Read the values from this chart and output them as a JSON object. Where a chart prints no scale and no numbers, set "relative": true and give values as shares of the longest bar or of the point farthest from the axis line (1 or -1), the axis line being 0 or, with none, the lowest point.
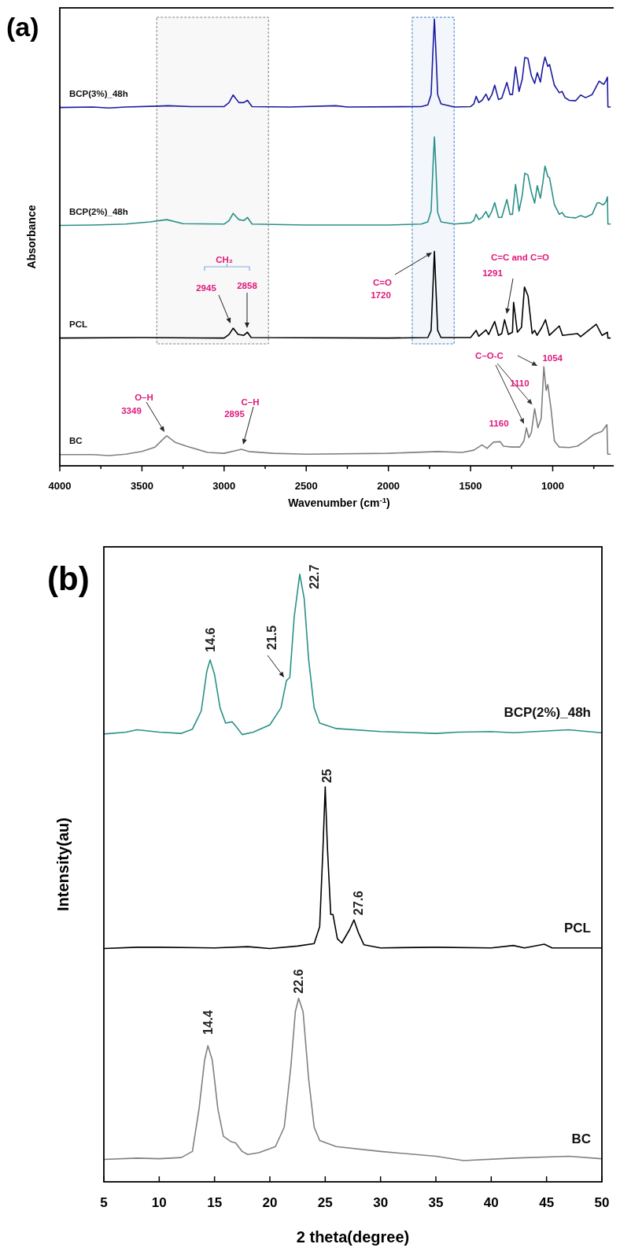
{
  "chart_data": [
    {
      "type": "line",
      "title": "(a)",
      "xlabel": "Wavenumber (cm$^{-1}$)",
      "ylabel": "Absorbance",
      "relative": true,
      "xlim": [
        4000,
        600
      ],
      "xticks": [
        4000,
        {
          "value": 3750,
          "label": null
        },
        3500,
        {
          "value": 3250,
          "label": null
        },
        3000,
        {
          "value": 2750,
          "label": null
        },
        2500,
        {
          "value": 2250,
          "label": null
        },
        2000,
        {
          "value": 1750,
          "label": null
        },
        1500,
        {
          "value": 1250,
          "label": null
        },
        1000,
        {
          "value": 750,
          "label": null
        }
      ],
      "bands": [
        {
          "axis": "x",
          "from": 3410,
          "to": 2730,
          "color": "#808080"
        },
        {
          "axis": "x",
          "from": 1855,
          "to": 1600,
          "color": "#3a7cc4"
        }
      ],
      "series": [
        {
          "name": "BCP(3%)_48h",
          "color": "#1a1aa0",
          "x": [
            4000,
            3800,
            3700,
            3600,
            3400,
            3340,
            3200,
            3000,
            2970,
            2945,
            2910,
            2880,
            2858,
            2830,
            2600,
            2320,
            2250,
            1800,
            1760,
            1740,
            1728,
            1720,
            1712,
            1700,
            1680,
            1600,
            1500,
            1480,
            1466,
            1450,
            1430,
            1406,
            1390,
            1370,
            1353,
            1330,
            1310,
            1279,
            1260,
            1245,
            1226,
            1205,
            1185,
            1170,
            1151,
            1130,
            1110,
            1094,
            1075,
            1060,
            1047,
            1030,
            1019,
            990,
            960,
            943,
            925,
            900,
            860,
            830,
            800,
            760,
            730,
            717,
            700,
            689,
            675,
            667,
            664,
            650
          ],
          "values": [
            0.802,
            0.803,
            0.801,
            0.803,
            0.805,
            0.806,
            0.804,
            0.804,
            0.813,
            0.83,
            0.813,
            0.813,
            0.818,
            0.804,
            0.803,
            0.806,
            0.803,
            0.804,
            0.808,
            0.831,
            0.937,
            1.0,
            0.937,
            0.831,
            0.81,
            0.803,
            0.804,
            0.81,
            0.827,
            0.813,
            0.818,
            0.832,
            0.818,
            0.831,
            0.852,
            0.82,
            0.823,
            0.858,
            0.831,
            0.831,
            0.893,
            0.838,
            0.866,
            0.914,
            0.912,
            0.873,
            0.856,
            0.88,
            0.859,
            0.894,
            0.915,
            0.894,
            0.898,
            0.852,
            0.835,
            0.838,
            0.824,
            0.818,
            0.817,
            0.83,
            0.824,
            0.831,
            0.852,
            0.861,
            0.856,
            0.854,
            0.863,
            0.87,
            0.803,
            0.803
          ]
        },
        {
          "name": "BCP(2%)_48h",
          "color": "#2a9088",
          "x": [
            4000,
            3800,
            3600,
            3450,
            3349,
            3250,
            3000,
            2970,
            2945,
            2910,
            2880,
            2858,
            2830,
            2500,
            2000,
            1800,
            1760,
            1740,
            1728,
            1720,
            1712,
            1700,
            1680,
            1600,
            1500,
            1480,
            1466,
            1450,
            1430,
            1406,
            1390,
            1370,
            1353,
            1330,
            1310,
            1279,
            1260,
            1245,
            1226,
            1205,
            1185,
            1170,
            1151,
            1130,
            1110,
            1094,
            1075,
            1060,
            1047,
            1030,
            1019,
            990,
            960,
            943,
            925,
            900,
            860,
            830,
            800,
            760,
            730,
            717,
            700,
            689,
            675,
            667,
            664,
            650
          ],
          "values": [
            0.538,
            0.539,
            0.541,
            0.546,
            0.551,
            0.542,
            0.541,
            0.549,
            0.565,
            0.551,
            0.549,
            0.556,
            0.541,
            0.539,
            0.539,
            0.541,
            0.546,
            0.57,
            0.676,
            0.736,
            0.676,
            0.567,
            0.546,
            0.541,
            0.544,
            0.549,
            0.563,
            0.551,
            0.556,
            0.569,
            0.556,
            0.57,
            0.589,
            0.556,
            0.556,
            0.596,
            0.563,
            0.563,
            0.63,
            0.57,
            0.606,
            0.655,
            0.651,
            0.613,
            0.588,
            0.627,
            0.599,
            0.634,
            0.671,
            0.648,
            0.644,
            0.585,
            0.563,
            0.567,
            0.558,
            0.556,
            0.555,
            0.56,
            0.556,
            0.563,
            0.588,
            0.589,
            0.585,
            0.585,
            0.592,
            0.602,
            0.541,
            0.541
          ]
        },
        {
          "name": "PCL",
          "color": "#000000",
          "x": [
            4000,
            3500,
            3000,
            2970,
            2945,
            2915,
            2880,
            2858,
            2835,
            2000,
            1760,
            1740,
            1728,
            1720,
            1712,
            1700,
            1680,
            1500,
            1466,
            1450,
            1406,
            1390,
            1353,
            1330,
            1310,
            1293,
            1270,
            1245,
            1238,
            1215,
            1190,
            1172,
            1150,
            1125,
            1110,
            1095,
            1066,
            1044,
            1020,
            960,
            940,
            850,
            830,
            735,
            700,
            667,
            664,
            650
          ],
          "values": [
            0.286,
            0.287,
            0.286,
            0.294,
            0.308,
            0.294,
            0.292,
            0.299,
            0.287,
            0.286,
            0.287,
            0.303,
            0.408,
            0.48,
            0.408,
            0.303,
            0.287,
            0.287,
            0.303,
            0.29,
            0.304,
            0.294,
            0.323,
            0.292,
            0.296,
            0.327,
            0.294,
            0.299,
            0.366,
            0.299,
            0.31,
            0.4,
            0.38,
            0.296,
            0.303,
            0.292,
            0.31,
            0.327,
            0.292,
            0.313,
            0.292,
            0.296,
            0.289,
            0.317,
            0.292,
            0.299,
            0.286,
            0.286
          ]
        },
        {
          "name": "BC",
          "color": "#808080",
          "x": [
            4000,
            3800,
            3700,
            3600,
            3500,
            3420,
            3370,
            3349,
            3300,
            3230,
            3100,
            3000,
            2930,
            2895,
            2850,
            2700,
            2500,
            2000,
            1700,
            1550,
            1480,
            1430,
            1400,
            1360,
            1320,
            1300,
            1250,
            1200,
            1175,
            1160,
            1145,
            1130,
            1110,
            1090,
            1070,
            1054,
            1040,
            1030,
            1010,
            990,
            960,
            900,
            850,
            800,
            750,
            700,
            670,
            665,
            650
          ],
          "values": [
            0.025,
            0.025,
            0.023,
            0.026,
            0.032,
            0.042,
            0.06,
            0.067,
            0.053,
            0.044,
            0.03,
            0.028,
            0.034,
            0.037,
            0.032,
            0.028,
            0.026,
            0.028,
            0.032,
            0.03,
            0.035,
            0.047,
            0.039,
            0.053,
            0.054,
            0.044,
            0.042,
            0.042,
            0.056,
            0.085,
            0.063,
            0.074,
            0.128,
            0.085,
            0.106,
            0.222,
            0.169,
            0.182,
            0.127,
            0.056,
            0.042,
            0.041,
            0.044,
            0.056,
            0.07,
            0.077,
            0.092,
            0.026,
            0.026
          ]
        }
      ],
      "annotations": [
        "CH₂",
        "2945",
        "2858",
        "C=O",
        "1720",
        "C=C and C=O",
        "1291",
        "O–H",
        "3349",
        "C–H",
        "2895",
        "C–O-C",
        {
          "text": "1054",
          "x": 1054,
          "y": 0.222
        },
        {
          "text": "1110",
          "x": 1110,
          "y": 0.128
        },
        {
          "text": "1160",
          "x": 1160,
          "y": 0.085
        }
      ]
    },
    {
      "type": "line",
      "title": "(b)",
      "xlabel": "2 theta(degree)",
      "ylabel": "Intensity(au)",
      "relative": true,
      "xlim": [
        5,
        50
      ],
      "xticks": [
        5,
        10,
        15,
        20,
        25,
        30,
        35,
        40,
        45,
        50
      ],
      "series": [
        {
          "name": "BCP(2%)_48h",
          "color": "#2a9088",
          "x": [
            5,
            7,
            8,
            10,
            12,
            13,
            13.8,
            14.3,
            14.6,
            15,
            15.5,
            16,
            16.6,
            17,
            17.5,
            18.5,
            20,
            21,
            21.5,
            21.8,
            22.2,
            22.7,
            23.1,
            23.5,
            24,
            24.5,
            26,
            30,
            35,
            37,
            40,
            42,
            45,
            47,
            50
          ],
          "values": [
            0.737,
            0.74,
            0.744,
            0.74,
            0.738,
            0.745,
            0.775,
            0.84,
            0.859,
            0.835,
            0.78,
            0.755,
            0.757,
            0.748,
            0.736,
            0.74,
            0.752,
            0.78,
            0.825,
            0.83,
            0.93,
            1.0,
            0.96,
            0.86,
            0.78,
            0.755,
            0.746,
            0.741,
            0.738,
            0.74,
            0.741,
            0.739,
            0.742,
            0.744,
            0.739
          ]
        },
        {
          "name": "PCL",
          "color": "#000000",
          "x": [
            5,
            8,
            10,
            15,
            18,
            20,
            22.5,
            24,
            24.5,
            24.8,
            25,
            25.2,
            25.5,
            25.7,
            26.1,
            26.5,
            27.2,
            27.6,
            28,
            28.5,
            30,
            35,
            40,
            42,
            43,
            44.8,
            45.5,
            50
          ],
          "values": [
            0.384,
            0.386,
            0.386,
            0.385,
            0.387,
            0.384,
            0.388,
            0.392,
            0.42,
            0.55,
            0.65,
            0.55,
            0.44,
            0.44,
            0.4,
            0.393,
            0.415,
            0.431,
            0.41,
            0.39,
            0.385,
            0.386,
            0.385,
            0.389,
            0.385,
            0.391,
            0.385,
            0.385
          ]
        },
        {
          "name": "BC",
          "color": "#808080",
          "x": [
            5,
            8,
            10,
            12,
            13,
            13.6,
            14.1,
            14.4,
            14.8,
            15.3,
            15.8,
            16.5,
            16.9,
            17.5,
            18,
            19,
            20.5,
            21.3,
            21.9,
            22.3,
            22.6,
            23,
            23.5,
            24,
            24.5,
            26,
            30,
            35,
            37.5,
            42,
            47,
            50
          ],
          "values": [
            0.037,
            0.039,
            0.038,
            0.04,
            0.05,
            0.12,
            0.2,
            0.224,
            0.2,
            0.12,
            0.075,
            0.066,
            0.064,
            0.05,
            0.045,
            0.048,
            0.058,
            0.09,
            0.19,
            0.28,
            0.302,
            0.28,
            0.17,
            0.09,
            0.068,
            0.058,
            0.05,
            0.042,
            0.035,
            0.039,
            0.042,
            0.038
          ]
        }
      ],
      "annotations": [
        {
          "text": "14.6",
          "x": 14.6,
          "y": 0.859
        },
        {
          "text": "21.5",
          "x": 21.5,
          "y": 0.825
        },
        {
          "text": "22.7",
          "x": 22.7,
          "y": 1.0
        },
        {
          "text": "25",
          "x": 25,
          "y": 0.65
        },
        {
          "text": "27.6",
          "x": 27.6,
          "y": 0.431
        },
        {
          "text": "22.6",
          "x": 22.6,
          "y": 0.302
        },
        {
          "text": "14.4",
          "x": 14.4,
          "y": 0.224
        }
      ]
    }
  ]
}
